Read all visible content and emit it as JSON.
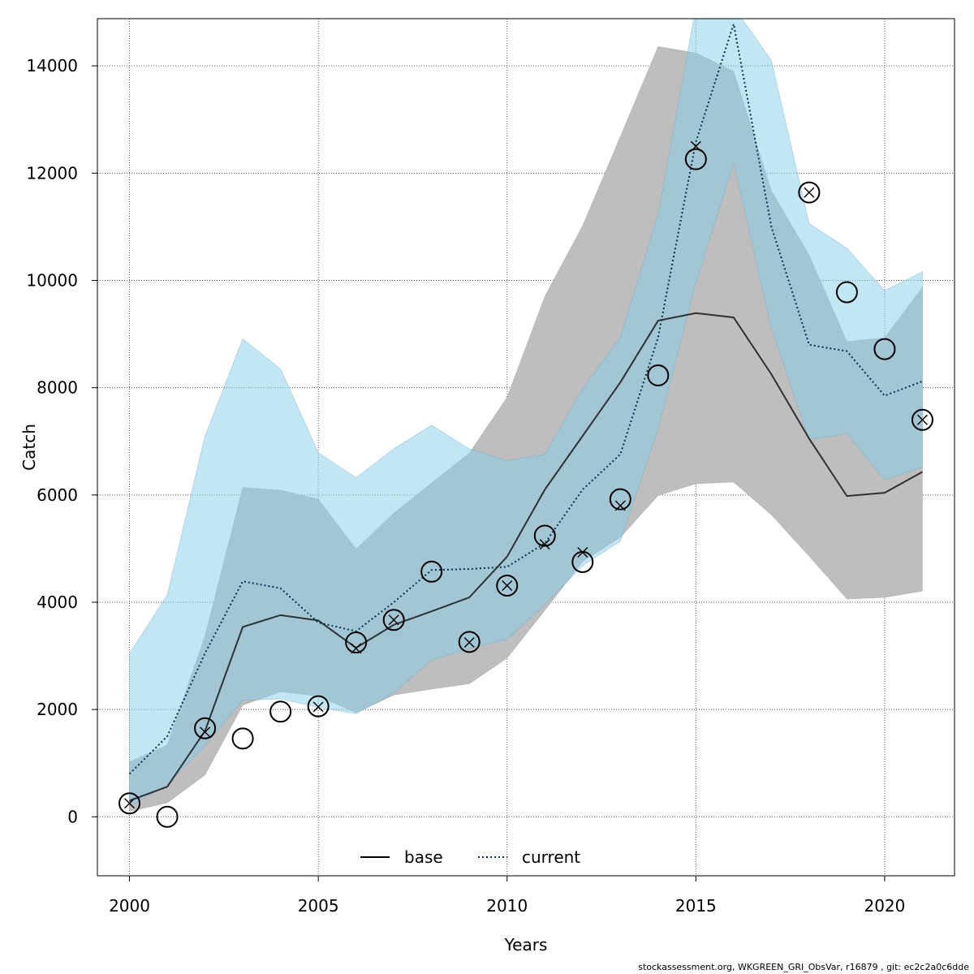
{
  "colors": {
    "base_band": "#bebebe",
    "current_band": "#87ceeb",
    "base_line": "#000000",
    "current_line": "#00304d"
  },
  "chart_data": {
    "type": "line",
    "xlabel": "Years",
    "ylabel": "Catch",
    "xlim": [
      1999.15,
      2021.85
    ],
    "ylim": [
      -1100,
      14880
    ],
    "x_ticks": [
      "2000",
      "2005",
      "2010",
      "2015",
      "2020"
    ],
    "y_ticks": [
      "0",
      "2000",
      "4000",
      "6000",
      "8000",
      "10000",
      "12000",
      "14000"
    ],
    "grid": true,
    "legend_position": "bottom-center",
    "years": [
      2000,
      2001,
      2002,
      2003,
      2004,
      2005,
      2006,
      2007,
      2008,
      2009,
      2010,
      2011,
      2012,
      2013,
      2014,
      2015,
      2016,
      2017,
      2018,
      2019,
      2020,
      2021
    ],
    "series": [
      {
        "name": "base",
        "line_style": "solid",
        "values": [
          300,
          560,
          1600,
          3540,
          3760,
          3660,
          3150,
          3580,
          3830,
          4090,
          4850,
          6100,
          7100,
          8100,
          9250,
          9390,
          9310,
          8250,
          7050,
          5980,
          6040,
          6430
        ],
        "lower": [
          100,
          260,
          780,
          2080,
          2330,
          2250,
          1940,
          2270,
          2380,
          2480,
          2960,
          3850,
          4760,
          5210,
          5990,
          6210,
          6240,
          5630,
          4860,
          4060,
          4090,
          4210
        ],
        "upper": [
          1020,
          1340,
          3370,
          6140,
          6090,
          5920,
          4990,
          5660,
          6220,
          6780,
          7820,
          9700,
          11020,
          12680,
          14360,
          14240,
          13900,
          11670,
          10470,
          8860,
          8930,
          9870
        ]
      },
      {
        "name": "current",
        "line_style": "dotted",
        "values": [
          800,
          1500,
          3050,
          4390,
          4260,
          3620,
          3460,
          4000,
          4600,
          4620,
          4660,
          5100,
          6100,
          6760,
          8940,
          12580,
          14780,
          11000,
          8800,
          8680,
          7850,
          8120
        ],
        "lower": [
          190,
          600,
          1330,
          2170,
          2200,
          2040,
          1920,
          2310,
          2920,
          3140,
          3310,
          3960,
          4680,
          5140,
          7230,
          9960,
          12180,
          9100,
          7030,
          7140,
          6280,
          6520
        ],
        "upper": [
          3040,
          4140,
          7100,
          8910,
          8350,
          6790,
          6320,
          6860,
          7300,
          6860,
          6640,
          6760,
          7980,
          8950,
          11240,
          15100,
          15100,
          14100,
          11060,
          10600,
          9810,
          10160
        ]
      }
    ],
    "observations": {
      "years": [
        2000,
        2001,
        2002,
        2003,
        2004,
        2005,
        2006,
        2007,
        2008,
        2009,
        2010,
        2011,
        2012,
        2013,
        2014,
        2015,
        2018,
        2019,
        2020,
        2021
      ],
      "values": [
        250,
        0,
        1650,
        1460,
        1960,
        2060,
        3250,
        3670,
        4570,
        3260,
        4310,
        5240,
        4750,
        5920,
        8230,
        12260,
        11640,
        9780,
        8720,
        7400
      ]
    },
    "predicted": {
      "years": [
        2000,
        2002,
        2005,
        2006,
        2007,
        2009,
        2010,
        2011,
        2012,
        2013,
        2015,
        2018,
        2021
      ],
      "values": [
        250,
        1580,
        2050,
        3140,
        3670,
        3250,
        4310,
        5080,
        4930,
        5800,
        12500,
        11640,
        7400
      ]
    }
  },
  "footer": "stockassessment.org, WKGREEN_GRI_ObsVar, r16879 , git: ec2c2a0c6dde"
}
